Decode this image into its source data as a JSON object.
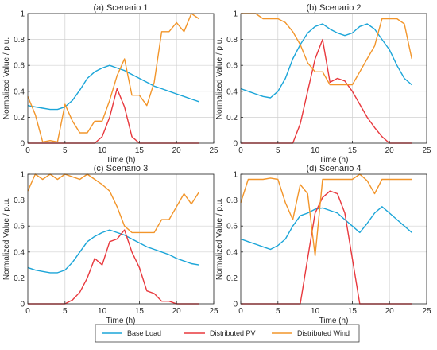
{
  "figure": {
    "colors": {
      "base": "#1ba5d8",
      "pv": "#e8383d",
      "wind": "#f2952a"
    }
  },
  "legend": {
    "entries": [
      "Base Load",
      "Distributed PV",
      "Distributed Wind"
    ]
  },
  "chart_data": [
    {
      "type": "line",
      "title": "(a) Scenario 1",
      "xlabel": "Time (h)",
      "ylabel": "Normalized Value / p.u.",
      "xlim": [
        0,
        25
      ],
      "ylim": [
        0,
        1
      ],
      "xticks": [
        0,
        5,
        10,
        15,
        20,
        25
      ],
      "yticks": [
        0,
        0.2,
        0.4,
        0.6,
        0.8,
        1
      ],
      "grid": true,
      "x": [
        0,
        1,
        2,
        3,
        4,
        5,
        6,
        7,
        8,
        9,
        10,
        11,
        12,
        13,
        14,
        15,
        16,
        17,
        18,
        19,
        20,
        21,
        22,
        23
      ],
      "series": [
        {
          "name": "Base Load",
          "color": "#1ba5d8",
          "values": [
            0.29,
            0.28,
            0.27,
            0.26,
            0.26,
            0.28,
            0.33,
            0.41,
            0.5,
            0.55,
            0.58,
            0.6,
            0.58,
            0.56,
            0.53,
            0.5,
            0.47,
            0.44,
            0.42,
            0.4,
            0.38,
            0.36,
            0.34,
            0.32
          ]
        },
        {
          "name": "Distributed PV",
          "color": "#e8383d",
          "values": [
            0,
            0,
            0,
            0,
            0,
            0,
            0,
            0,
            0,
            0,
            0.05,
            0.2,
            0.42,
            0.28,
            0.05,
            0,
            0,
            0,
            0,
            0,
            0,
            0,
            0,
            0
          ]
        },
        {
          "name": "Distributed Wind",
          "color": "#f2952a",
          "values": [
            0.36,
            0.22,
            0.01,
            0.02,
            0.01,
            0.3,
            0.17,
            0.08,
            0.08,
            0.17,
            0.17,
            0.33,
            0.52,
            0.65,
            0.37,
            0.37,
            0.29,
            0.47,
            0.86,
            0.86,
            0.93,
            0.86,
            1.0,
            0.96
          ]
        }
      ]
    },
    {
      "type": "line",
      "title": "(b) Scenario 2",
      "xlabel": "Time (h)",
      "ylabel": "Normalized Value / p.u.",
      "xlim": [
        0,
        25
      ],
      "ylim": [
        0,
        1
      ],
      "xticks": [
        0,
        5,
        10,
        15,
        20,
        25
      ],
      "yticks": [
        0,
        0.2,
        0.4,
        0.6,
        0.8,
        1
      ],
      "grid": true,
      "x": [
        0,
        1,
        2,
        3,
        4,
        5,
        6,
        7,
        8,
        9,
        10,
        11,
        12,
        13,
        14,
        15,
        16,
        17,
        18,
        19,
        20,
        21,
        22,
        23
      ],
      "series": [
        {
          "name": "Base Load",
          "color": "#1ba5d8",
          "values": [
            0.42,
            0.4,
            0.38,
            0.36,
            0.35,
            0.4,
            0.5,
            0.65,
            0.76,
            0.85,
            0.9,
            0.92,
            0.88,
            0.85,
            0.83,
            0.85,
            0.9,
            0.92,
            0.88,
            0.8,
            0.72,
            0.6,
            0.5,
            0.45
          ]
        },
        {
          "name": "Distributed PV",
          "color": "#e8383d",
          "values": [
            0,
            0,
            0,
            0,
            0,
            0,
            0,
            0,
            0.15,
            0.4,
            0.65,
            0.8,
            0.47,
            0.5,
            0.48,
            0.4,
            0.3,
            0.2,
            0.12,
            0.05,
            0,
            0,
            0,
            0
          ]
        },
        {
          "name": "Distributed Wind",
          "color": "#f2952a",
          "values": [
            1.0,
            1.0,
            1.0,
            0.96,
            0.96,
            0.96,
            0.93,
            0.86,
            0.76,
            0.62,
            0.55,
            0.55,
            0.45,
            0.45,
            0.45,
            0.45,
            0.55,
            0.65,
            0.75,
            0.96,
            0.96,
            0.96,
            0.92,
            0.65
          ]
        }
      ]
    },
    {
      "type": "line",
      "title": "(c) Scenario 3",
      "xlabel": "Time (h)",
      "ylabel": "Normalized Value / p.u.",
      "xlim": [
        0,
        25
      ],
      "ylim": [
        0,
        1
      ],
      "xticks": [
        0,
        5,
        10,
        15,
        20,
        25
      ],
      "yticks": [
        0,
        0.2,
        0.4,
        0.6,
        0.8,
        1
      ],
      "grid": true,
      "x": [
        0,
        1,
        2,
        3,
        4,
        5,
        6,
        7,
        8,
        9,
        10,
        11,
        12,
        13,
        14,
        15,
        16,
        17,
        18,
        19,
        20,
        21,
        22,
        23
      ],
      "series": [
        {
          "name": "Base Load",
          "color": "#1ba5d8",
          "values": [
            0.28,
            0.26,
            0.25,
            0.24,
            0.24,
            0.26,
            0.32,
            0.4,
            0.48,
            0.52,
            0.55,
            0.57,
            0.55,
            0.53,
            0.5,
            0.47,
            0.44,
            0.42,
            0.4,
            0.38,
            0.35,
            0.33,
            0.31,
            0.3
          ]
        },
        {
          "name": "Distributed PV",
          "color": "#e8383d",
          "values": [
            0,
            0,
            0,
            0,
            0,
            0,
            0.03,
            0.09,
            0.2,
            0.35,
            0.3,
            0.48,
            0.5,
            0.57,
            0.4,
            0.28,
            0.1,
            0.08,
            0.02,
            0.02,
            0,
            0,
            0,
            0
          ]
        },
        {
          "name": "Distributed Wind",
          "color": "#f2952a",
          "values": [
            0.87,
            1.0,
            0.96,
            1.0,
            0.96,
            1.0,
            0.98,
            0.96,
            1.0,
            0.96,
            0.92,
            0.87,
            0.75,
            0.6,
            0.55,
            0.55,
            0.55,
            0.55,
            0.65,
            0.65,
            0.75,
            0.85,
            0.77,
            0.86
          ]
        }
      ]
    },
    {
      "type": "line",
      "title": "(d) Scenario 4",
      "xlabel": "Time (h)",
      "ylabel": "Normalized Value / p.u.",
      "xlim": [
        0,
        25
      ],
      "ylim": [
        0,
        1
      ],
      "xticks": [
        0,
        5,
        10,
        15,
        20,
        25
      ],
      "yticks": [
        0,
        0.2,
        0.4,
        0.6,
        0.8,
        1
      ],
      "grid": true,
      "x": [
        0,
        1,
        2,
        3,
        4,
        5,
        6,
        7,
        8,
        9,
        10,
        11,
        12,
        13,
        14,
        15,
        16,
        17,
        18,
        19,
        20,
        21,
        22,
        23
      ],
      "series": [
        {
          "name": "Base Load",
          "color": "#1ba5d8",
          "values": [
            0.5,
            0.48,
            0.46,
            0.44,
            0.42,
            0.45,
            0.5,
            0.6,
            0.68,
            0.7,
            0.73,
            0.74,
            0.72,
            0.7,
            0.65,
            0.6,
            0.55,
            0.62,
            0.7,
            0.75,
            0.7,
            0.65,
            0.6,
            0.55
          ]
        },
        {
          "name": "Distributed PV",
          "color": "#e8383d",
          "values": [
            0,
            0,
            0,
            0,
            0,
            0,
            0,
            0,
            0,
            0.35,
            0.7,
            0.82,
            0.87,
            0.85,
            0.7,
            0.35,
            0,
            0,
            0,
            0,
            0,
            0,
            0,
            0
          ]
        },
        {
          "name": "Distributed Wind",
          "color": "#f2952a",
          "values": [
            0.78,
            0.96,
            0.96,
            0.96,
            0.97,
            0.96,
            0.78,
            0.65,
            0.92,
            0.85,
            0.37,
            0.96,
            0.96,
            0.96,
            0.96,
            0.96,
            1.0,
            0.95,
            0.85,
            0.96,
            0.96,
            0.96,
            0.96,
            0.96
          ]
        }
      ]
    }
  ]
}
